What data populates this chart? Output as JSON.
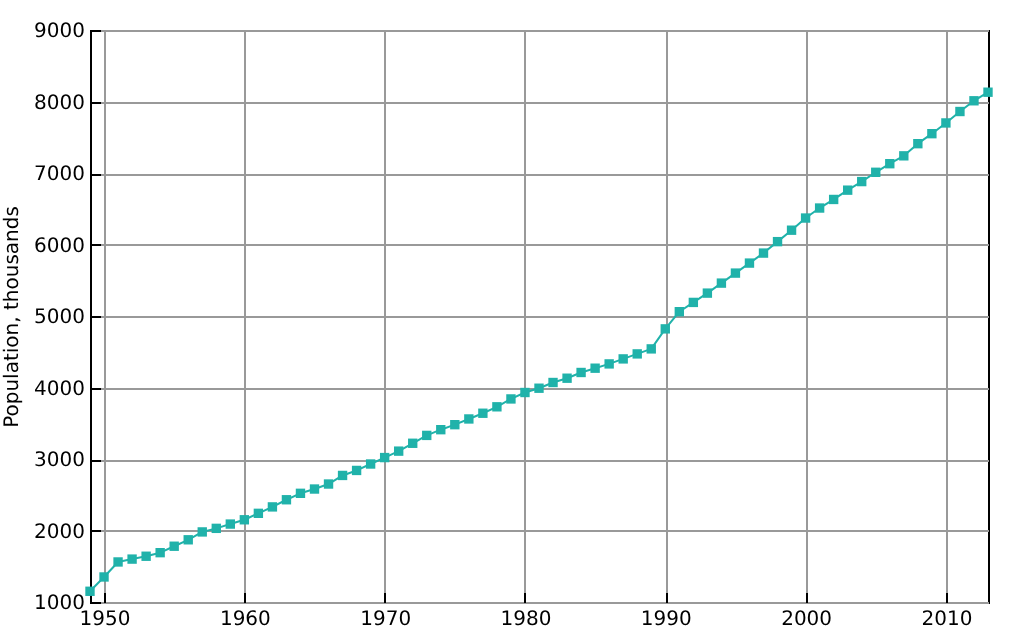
{
  "chart_data": {
    "type": "line",
    "ylabel": "Population, thousands",
    "x": [
      1949,
      1950,
      1951,
      1952,
      1953,
      1954,
      1955,
      1956,
      1957,
      1958,
      1959,
      1960,
      1961,
      1962,
      1963,
      1964,
      1965,
      1966,
      1967,
      1968,
      1969,
      1970,
      1971,
      1972,
      1973,
      1974,
      1975,
      1976,
      1977,
      1978,
      1979,
      1980,
      1981,
      1982,
      1983,
      1984,
      1985,
      1986,
      1987,
      1988,
      1989,
      1990,
      1991,
      1992,
      1993,
      1994,
      1995,
      1996,
      1997,
      1998,
      1999,
      2000,
      2001,
      2002,
      2003,
      2004,
      2005,
      2006,
      2007,
      2008,
      2009,
      2010,
      2011,
      2012,
      2013
    ],
    "series": [
      {
        "color": "#20b2aa",
        "values": [
          1150,
          1350,
          1560,
          1600,
          1640,
          1690,
          1780,
          1870,
          1980,
          2030,
          2090,
          2150,
          2240,
          2330,
          2430,
          2520,
          2580,
          2650,
          2770,
          2840,
          2930,
          3020,
          3110,
          3220,
          3330,
          3410,
          3480,
          3560,
          3640,
          3730,
          3840,
          3930,
          3990,
          4070,
          4130,
          4210,
          4270,
          4330,
          4400,
          4470,
          4540,
          4820,
          5060,
          5190,
          5320,
          5460,
          5600,
          5740,
          5880,
          6040,
          6200,
          6370,
          6510,
          6630,
          6760,
          6880,
          7010,
          7130,
          7240,
          7410,
          7550,
          7700,
          7860,
          8010,
          8130
        ]
      }
    ],
    "xlim": [
      1949,
      2013
    ],
    "xticks": [
      1950,
      1960,
      1970,
      1980,
      1990,
      2000,
      2010
    ],
    "ylim": [
      1000,
      9000
    ],
    "yticks": [
      1000,
      2000,
      3000,
      4000,
      5000,
      6000,
      7000,
      8000,
      9000
    ],
    "grid": true,
    "marker": "square",
    "line_style": "solid"
  }
}
